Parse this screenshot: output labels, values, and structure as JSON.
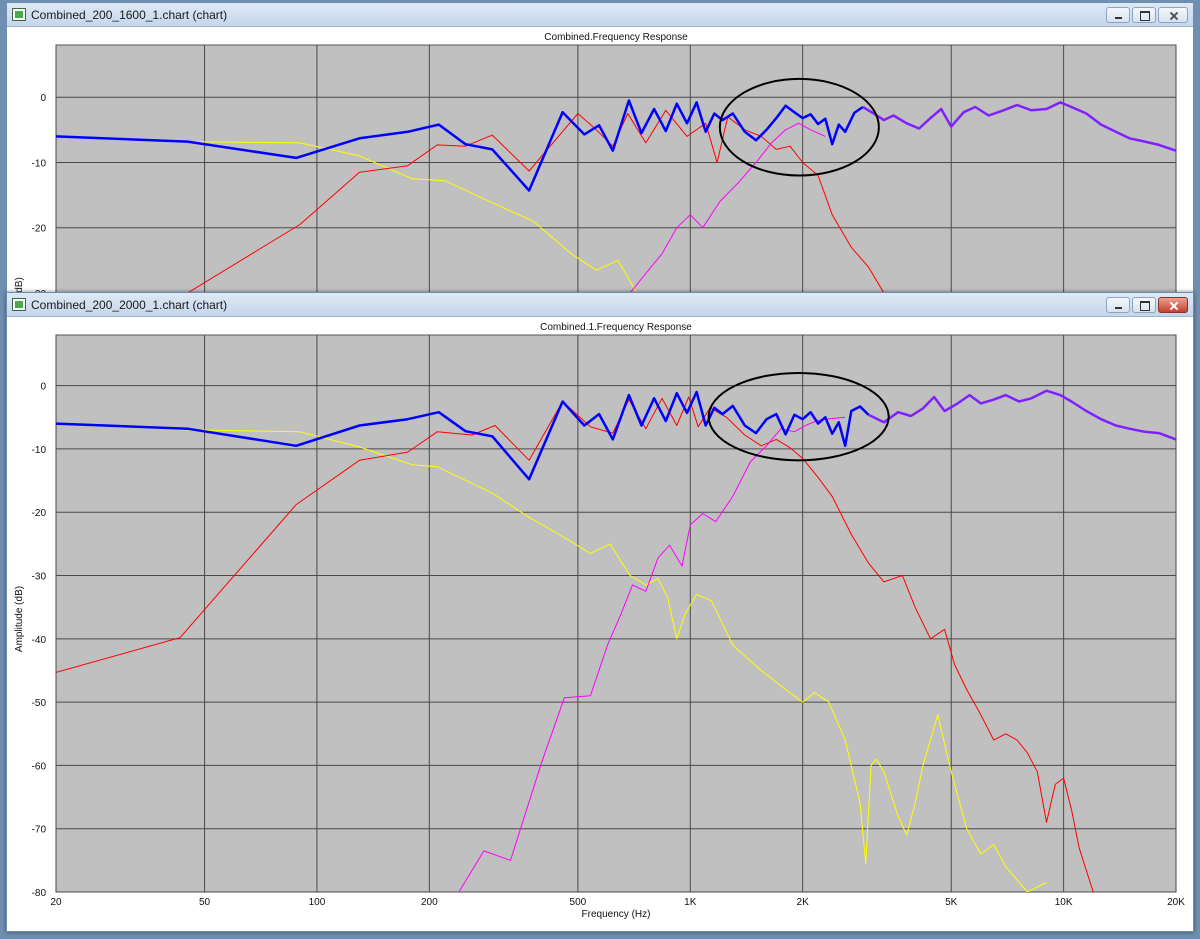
{
  "windows": [
    {
      "title": "Combined_200_1600_1.chart (chart)",
      "close_active": false,
      "chart_data": {
        "type": "line",
        "title": "Combined.Frequency Response",
        "xlabel": "",
        "ylabel": "dB)",
        "xscale": "log",
        "xlim": [
          20,
          20000
        ],
        "ylim": [
          -30,
          8
        ],
        "grid": true,
        "x_ticks": [
          20,
          50,
          100,
          200,
          500,
          1000,
          2000,
          5000,
          10000,
          20000
        ],
        "x_tick_labels": [
          "",
          "",
          "",
          "",
          "",
          "",
          "",
          "",
          "",
          ""
        ],
        "y_ticks": [
          0,
          -10,
          -20,
          -30
        ],
        "y_tick_labels": [
          "0",
          "-10",
          "-20",
          "-30"
        ],
        "background_color": "#c0c0c0",
        "grid_color": "#4a4a4a",
        "annotations": [
          {
            "type": "ellipse",
            "cx": 1950,
            "cy": -3.5,
            "x_range": [
              1200,
              3200
            ],
            "y_range": [
              -12,
              2.8
            ]
          }
        ],
        "series": [
          {
            "color": "#ffff00",
            "width": 1,
            "x": [
              20,
              45,
              90,
              130,
              180,
              220,
              290,
              380,
              480,
              560,
              640,
              720
            ],
            "y": [
              -6,
              -6.8,
              -7,
              -9,
              -12.5,
              -12.8,
              -16,
              -19,
              -24,
              -26.5,
              -25,
              -30
            ]
          },
          {
            "color": "#ff0000",
            "width": 1,
            "x": [
              45,
              90,
              130,
              175,
              210,
              250,
              295,
              370,
              500,
              560,
              620,
              680,
              760,
              860,
              980,
              1100,
              1180,
              1260,
              1400,
              1550,
              1700,
              1850,
              2000,
              2200,
              2400,
              2700,
              3000,
              3300
            ],
            "y": [
              -30,
              -19.5,
              -11.5,
              -10.5,
              -7.3,
              -7.5,
              -5.8,
              -11.3,
              -2.5,
              -5,
              -7.5,
              -2.5,
              -7,
              -2,
              -6,
              -4,
              -10,
              -3,
              -5,
              -6,
              -8,
              -7.5,
              -10,
              -12,
              -18,
              -23,
              -26,
              -30
            ]
          },
          {
            "color": "#ff00ff",
            "width": 1,
            "x": [
              690,
              760,
              840,
              920,
              1000,
              1080,
              1200,
              1350,
              1500,
              1650,
              1800,
              1950,
              2100,
              2300
            ],
            "y": [
              -30,
              -27,
              -24,
              -20,
              -18,
              -20,
              -16,
              -13,
              -10,
              -7,
              -5,
              -4,
              -5,
              -6
            ]
          },
          {
            "color": "#0000ff",
            "width": 2.5,
            "x": [
              20,
              45,
              88,
              130,
              175,
              212,
              250,
              295,
              370,
              455,
              520,
              570,
              620,
              685,
              740,
              800,
              860,
              920,
              980,
              1040,
              1100,
              1160,
              1220,
              1300,
              1400,
              1500,
              1600,
              1700,
              1800,
              1900,
              2000,
              2100,
              2200,
              2300,
              2400,
              2500,
              2600,
              2750,
              2900
            ],
            "y": [
              -6,
              -6.8,
              -9.3,
              -6.3,
              -5.3,
              -4.2,
              -7.2,
              -8,
              -14.3,
              -2.3,
              -5.7,
              -4.3,
              -8.2,
              -0.5,
              -5.5,
              -1.8,
              -5.2,
              -1,
              -4,
              -0.8,
              -5.3,
              -2.5,
              -3.5,
              -2.5,
              -5.3,
              -6.6,
              -5,
              -3.2,
              -1.3,
              -2.3,
              -3.2,
              -2.6,
              -4.1,
              -3.3,
              -7.2,
              -4.2,
              -5.3,
              -2.4,
              -1.5
            ]
          },
          {
            "color": "#8020ff",
            "width": 2.5,
            "x": [
              2900,
              3100,
              3300,
              3500,
              3800,
              4100,
              4400,
              4700,
              5000,
              5400,
              5800,
              6300,
              6900,
              7500,
              8200,
              9000,
              9800,
              10500,
              11500,
              12600,
              13800,
              15000,
              16500,
              18000,
              20000
            ],
            "y": [
              -1.5,
              -2.5,
              -3.5,
              -2.8,
              -4,
              -4.8,
              -3.2,
              -1.8,
              -4.5,
              -2.3,
              -1.5,
              -2.8,
              -2,
              -1.2,
              -2,
              -1.8,
              -0.8,
              -1.5,
              -2.5,
              -4.2,
              -5.3,
              -6.3,
              -6.8,
              -7.3,
              -8.2
            ]
          }
        ]
      }
    },
    {
      "title": "Combined_200_2000_1.chart (chart)",
      "close_active": true,
      "chart_data": {
        "type": "line",
        "title": "Combined.1.Frequency Response",
        "xlabel": "Frequency (Hz)",
        "ylabel": "Amplitude (dB)",
        "xscale": "log",
        "xlim": [
          20,
          20000
        ],
        "ylim": [
          -80,
          8
        ],
        "grid": true,
        "x_ticks": [
          20,
          50,
          100,
          200,
          500,
          1000,
          2000,
          5000,
          10000,
          20000
        ],
        "x_tick_labels": [
          "20",
          "50",
          "100",
          "200",
          "500",
          "1K",
          "2K",
          "5K",
          "10K",
          "20K"
        ],
        "y_ticks": [
          0,
          -10,
          -20,
          -30,
          -40,
          -50,
          -60,
          -70,
          -80
        ],
        "y_tick_labels": [
          "0",
          "-10",
          "-20",
          "-30",
          "-40",
          "-50",
          "-60",
          "-70",
          "-80"
        ],
        "background_color": "#c0c0c0",
        "grid_color": "#4a4a4a",
        "annotations": [
          {
            "type": "ellipse",
            "cx": 1920,
            "cy": -4.8,
            "x_range": [
              1120,
              3400
            ],
            "y_range": [
              -11.8,
              2
            ]
          }
        ],
        "series": [
          {
            "color": "#ffff00",
            "width": 1,
            "x": [
              20,
              45,
              90,
              130,
              180,
              210,
              295,
              370,
              460,
              540,
              610,
              690,
              760,
              820,
              870,
              920,
              970,
              1040,
              1140,
              1300,
              1550,
              1800,
              2000,
              2150,
              2350,
              2600,
              2850,
              2950,
              3050,
              3150,
              3300,
              3600,
              3800,
              4000,
              4200,
              4600,
              5000,
              5500,
              6000,
              6500,
              7000,
              8000,
              9000
            ],
            "y": [
              -6,
              -7,
              -7.3,
              -9.7,
              -12.5,
              -12.8,
              -17,
              -20.8,
              -24,
              -26.5,
              -25,
              -30,
              -31.5,
              -30.5,
              -33.5,
              -40,
              -36,
              -33,
              -34,
              -41,
              -45,
              -48,
              -50,
              -48.5,
              -50,
              -56,
              -66,
              -75.5,
              -60,
              -59,
              -61,
              -68,
              -71,
              -66,
              -60,
              -52,
              -61,
              -70,
              -74,
              -72.5,
              -76,
              -80,
              -78.5
            ]
          },
          {
            "color": "#ff0000",
            "width": 1,
            "x": [
              20,
              43,
              88,
              130,
              175,
              210,
              260,
              300,
              370,
              455,
              540,
              620,
              685,
              760,
              840,
              920,
              990,
              1050,
              1130,
              1250,
              1400,
              1550,
              1700,
              1850,
              2000,
              2200,
              2400,
              2700,
              3000,
              3300,
              3700,
              4000,
              4400,
              4800,
              5100,
              5500,
              6000,
              6500,
              7000,
              7500,
              8000,
              8500,
              9000,
              9500,
              10000,
              10500,
              11000,
              12000
            ],
            "y": [
              -45.3,
              -39.8,
              -18.8,
              -11.8,
              -10.5,
              -7.3,
              -7.8,
              -6.3,
              -11.8,
              -2.5,
              -6.5,
              -7.5,
              -2.2,
              -6.8,
              -2,
              -6.3,
              -1.8,
              -6.5,
              -3.5,
              -5,
              -7.8,
              -9.5,
              -8.5,
              -9.8,
              -11.5,
              -14.5,
              -17.5,
              -23.5,
              -28,
              -31,
              -30,
              -35,
              -40,
              -38.5,
              -44,
              -48,
              -52,
              -56,
              -55,
              -56,
              -58,
              -61,
              -69,
              -63,
              -62,
              -67,
              -73,
              -80
            ]
          },
          {
            "color": "#ff00ff",
            "width": 1,
            "x": [
              240,
              280,
              330,
              400,
              460,
              540,
              600,
              650,
              700,
              760,
              820,
              880,
              950,
              1000,
              1080,
              1170,
              1300,
              1450,
              1600,
              1750,
              1900,
              2050,
              2200,
              2400,
              2600
            ],
            "y": [
              -80,
              -73.5,
              -75,
              -59.5,
              -49.3,
              -49,
              -41,
              -36.3,
              -31.5,
              -32.5,
              -27.2,
              -25.2,
              -28.5,
              -22,
              -20.2,
              -21.5,
              -17.5,
              -12,
              -9.5,
              -6.8,
              -7.3,
              -6.2,
              -5.5,
              -5.2,
              -5
            ]
          },
          {
            "color": "#0000ff",
            "width": 2.5,
            "x": [
              20,
              45,
              88,
              130,
              175,
              212,
              250,
              295,
              370,
              455,
              520,
              570,
              620,
              685,
              740,
              800,
              860,
              920,
              980,
              1040,
              1100,
              1160,
              1220,
              1300,
              1400,
              1500,
              1600,
              1700,
              1800,
              1900,
              2000,
              2100,
              2200,
              2300,
              2400,
              2500,
              2600,
              2700,
              2850,
              3000
            ],
            "y": [
              -6,
              -6.8,
              -9.5,
              -6.3,
              -5.3,
              -4.2,
              -7.2,
              -8,
              -14.8,
              -2.5,
              -6.3,
              -4.5,
              -8.5,
              -1.5,
              -6.3,
              -2,
              -5.6,
              -1.2,
              -4.3,
              -1,
              -6.3,
              -3.5,
              -4.5,
              -3.2,
              -6.3,
              -7.5,
              -5.3,
              -4.5,
              -7.7,
              -4.6,
              -5.3,
              -4.2,
              -6,
              -5,
              -7.6,
              -5.8,
              -9.5,
              -4,
              -3.3,
              -4.6
            ]
          },
          {
            "color": "#8020ff",
            "width": 2.5,
            "x": [
              3000,
              3300,
              3600,
              3900,
              4200,
              4500,
              4800,
              5200,
              5600,
              6000,
              6500,
              7000,
              7600,
              8200,
              9000,
              9800,
              10500,
              11500,
              12600,
              13800,
              15000,
              16500,
              18000,
              20000
            ],
            "y": [
              -4.6,
              -5.8,
              -4.2,
              -4.8,
              -3.6,
              -1.8,
              -4,
              -2.8,
              -1.5,
              -2.8,
              -2.2,
              -1.5,
              -2.5,
              -2,
              -0.8,
              -1.5,
              -2.5,
              -4,
              -5.3,
              -6.3,
              -6.8,
              -7.3,
              -7.5,
              -8.5
            ]
          }
        ]
      }
    }
  ]
}
